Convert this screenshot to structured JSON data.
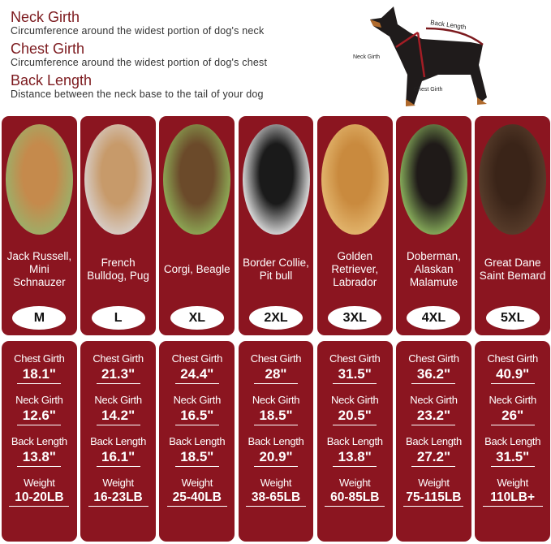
{
  "header": {
    "items": [
      {
        "title": "Neck Girth",
        "desc": "Circumference around the widest portion of dog's neck"
      },
      {
        "title": "Chest Girth",
        "desc": "Circumference around the widest portion of dog's chest"
      },
      {
        "title": "Back Length",
        "desc": "Distance between the neck base to the tail of your dog"
      }
    ]
  },
  "diagram": {
    "back_length": "Back Length",
    "neck_girth": "Neck Girth",
    "chest_girth": "Chest Girth"
  },
  "labels": {
    "chest": "Chest Girth",
    "neck": "Neck Girth",
    "back": "Back Length",
    "weight": "Weight"
  },
  "colors": {
    "panel": "#8b1520",
    "title": "#7c1a1e"
  },
  "sizes": [
    {
      "breed": "Jack Russell, Mini Schnauzer",
      "size": "M",
      "chest": "18.1\"",
      "neck": "12.6\"",
      "back": "13.8\"",
      "weight": "10-20LB",
      "photo": [
        "#9bb06a",
        "#c58a4c"
      ]
    },
    {
      "breed": "French Bulldog, Pug",
      "size": "L",
      "chest": "21.3\"",
      "neck": "14.2\"",
      "back": "16.1\"",
      "weight": "16-23LB",
      "photo": [
        "#d8d0cc",
        "#c79a6a"
      ]
    },
    {
      "breed": "Corgi, Beagle",
      "size": "XL",
      "chest": "24.4\"",
      "neck": "16.5\"",
      "back": "18.5\"",
      "weight": "25-40LB",
      "photo": [
        "#8fae58",
        "#6b4a2a"
      ]
    },
    {
      "breed": "Border Collie, Pit bull",
      "size": "2XL",
      "chest": "28\"",
      "neck": "18.5\"",
      "back": "20.9\"",
      "weight": "38-65LB",
      "photo": [
        "#e8e8e8",
        "#1a1a1a"
      ]
    },
    {
      "breed": "Golden Retriever, Labrador",
      "size": "3XL",
      "chest": "31.5\"",
      "neck": "20.5\"",
      "back": "13.8\"",
      "weight": "60-85LB",
      "photo": [
        "#e4b870",
        "#c98a3e"
      ]
    },
    {
      "breed": "Doberman, Alaskan Malamute",
      "size": "4XL",
      "chest": "36.2\"",
      "neck": "23.2\"",
      "back": "27.2\"",
      "weight": "75-115LB",
      "photo": [
        "#8fb860",
        "#1f1a18"
      ]
    },
    {
      "breed": "Great Dane Saint Bemard",
      "size": "5XL",
      "chest": "40.9\"",
      "neck": "26\"",
      "back": "31.5\"",
      "weight": "110LB+",
      "photo": [
        "#5a3e2c",
        "#3a2418"
      ]
    }
  ]
}
